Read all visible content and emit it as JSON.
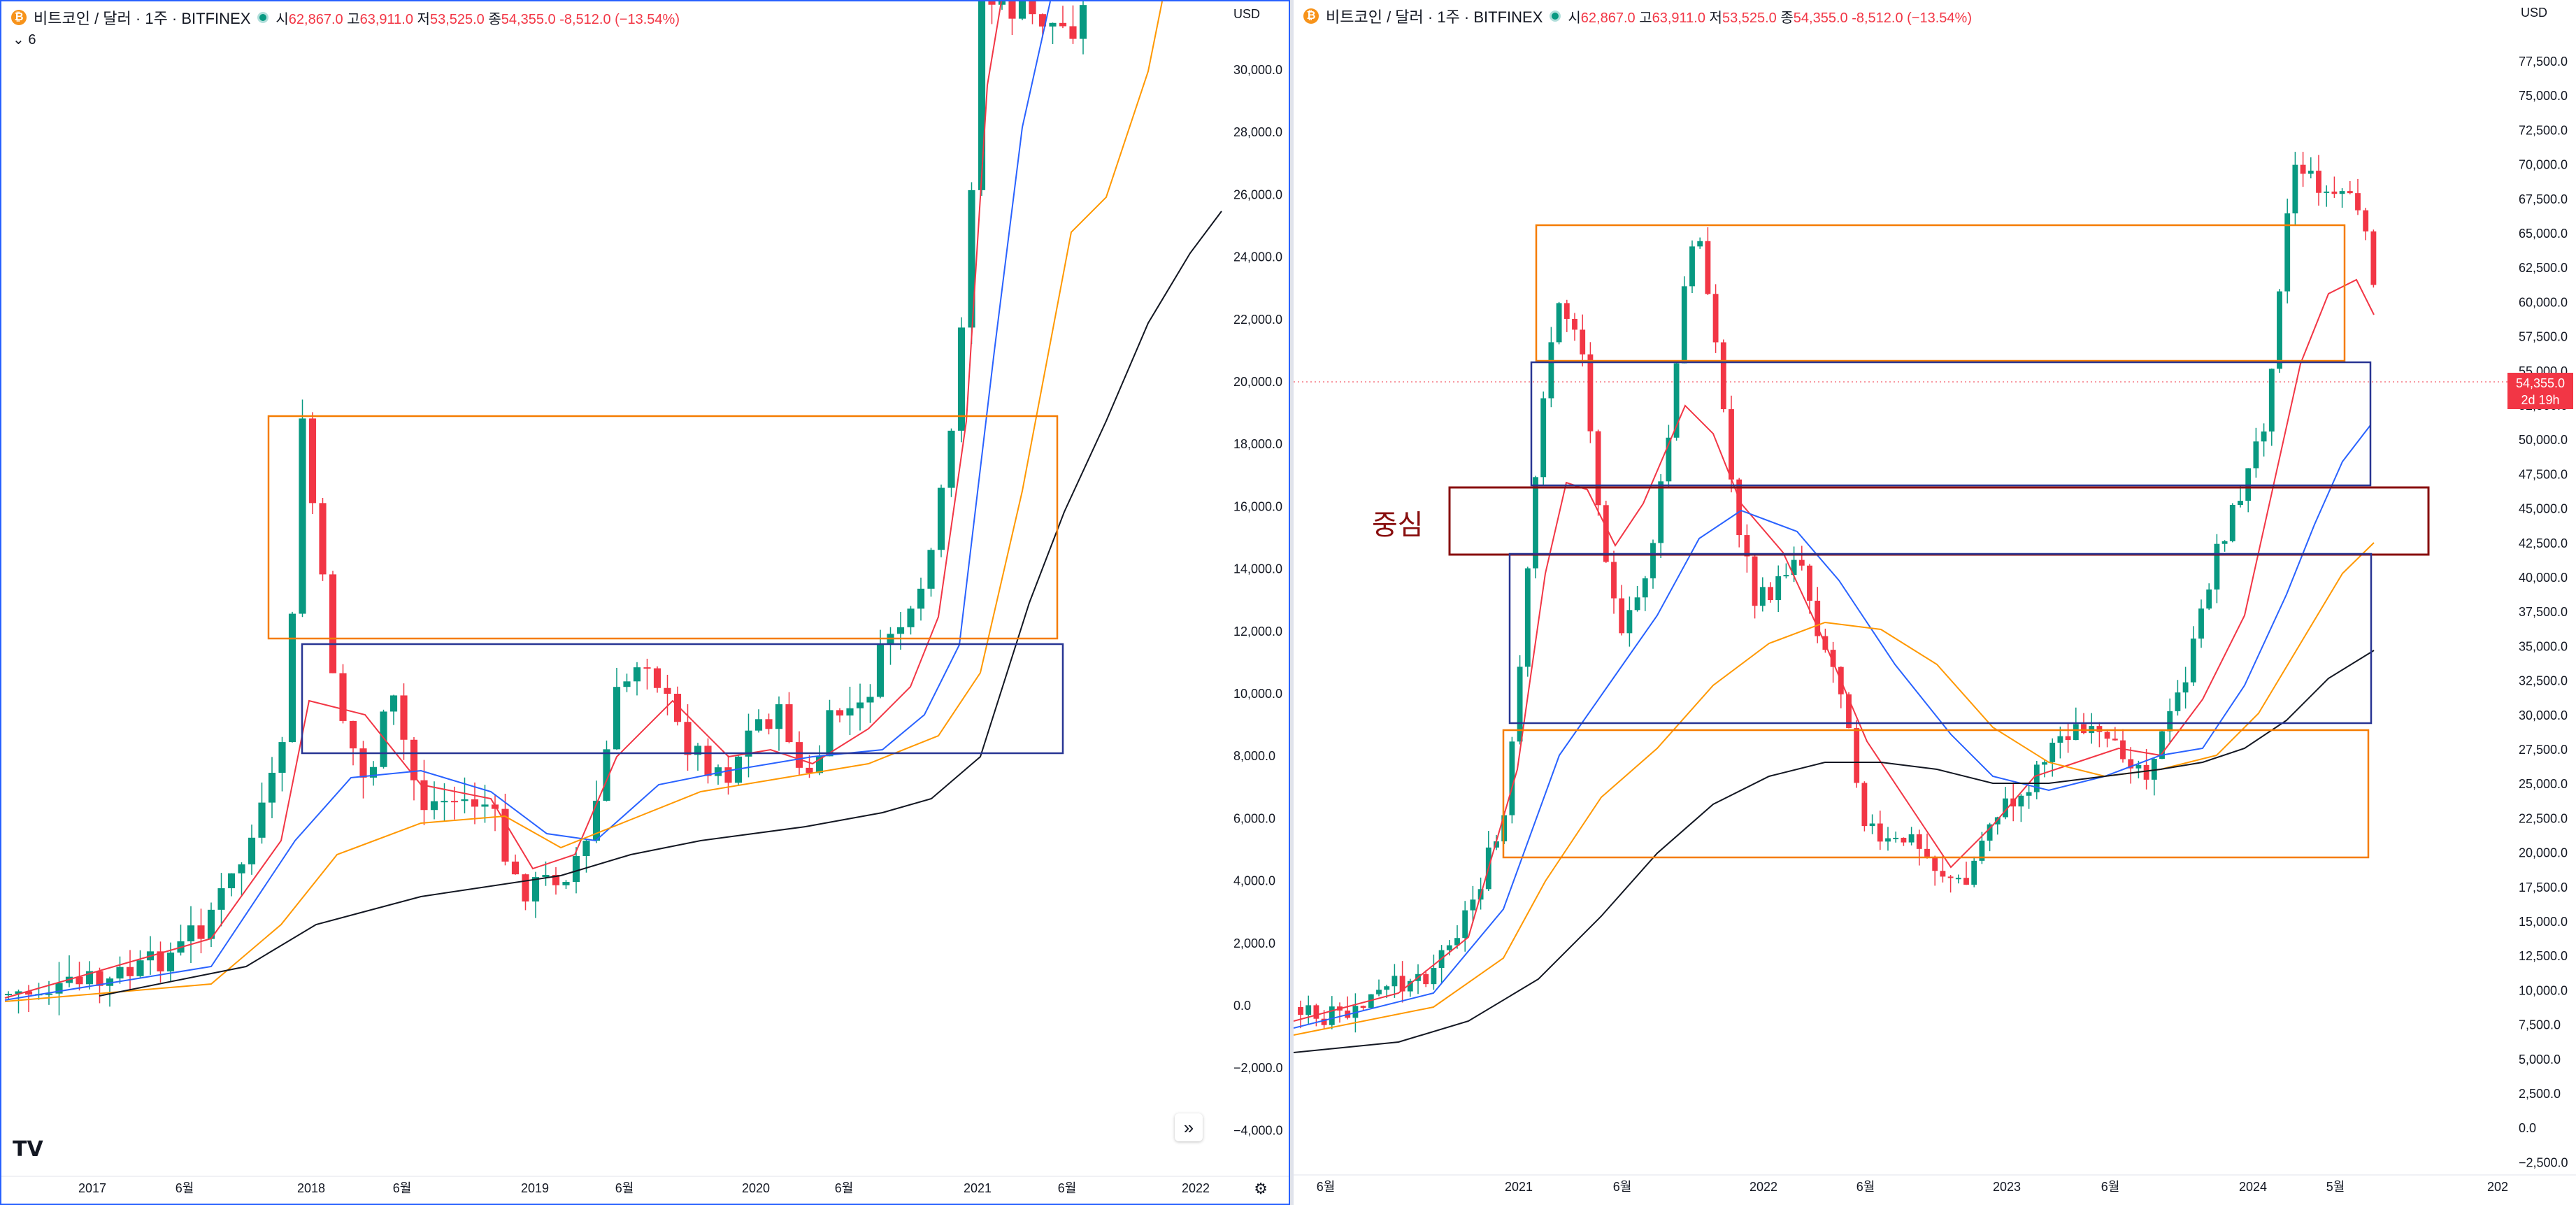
{
  "legend": {
    "symbol": "비트코인 / 달러 · 1주 · BITFINEX",
    "open_label": "시",
    "open": "62,867.0",
    "high_label": "고",
    "high": "63,911.0",
    "low_label": "저",
    "low": "53,525.0",
    "close_label": "종",
    "close": "54,355.0",
    "change": "-8,512.0 (−13.54%)",
    "indicator_count": "6"
  },
  "currency": "USD",
  "colors": {
    "up": "#089981",
    "down": "#f23645",
    "ema_red": "#f23645",
    "ema_blue": "#2962ff",
    "ema_orange": "#ff9800",
    "ema_black": "#131722",
    "box_orange": "#f57c00",
    "box_blue": "#283593",
    "box_darkred": "#880e0e"
  },
  "left_chart": {
    "y_ticks": [
      "30,000.0",
      "28,000.0",
      "26,000.0",
      "24,000.0",
      "22,000.0",
      "20,000.0",
      "18,000.0",
      "16,000.0",
      "14,000.0",
      "12,000.0",
      "10,000.0",
      "8,000.0",
      "6,000.0",
      "4,000.0",
      "2,000.0",
      "0.0",
      "−2,000.0",
      "−4,000.0"
    ],
    "x_ticks": [
      "2017",
      "6월",
      "2018",
      "6월",
      "2019",
      "6월",
      "2020",
      "6월",
      "2021",
      "6월",
      "2022"
    ]
  },
  "right_chart": {
    "y_ticks": [
      "77,500.0",
      "75,000.0",
      "72,500.0",
      "70,000.0",
      "67,500.0",
      "65,000.0",
      "62,500.0",
      "60,000.0",
      "57,500.0",
      "55,000.0",
      "52,500.0",
      "50,000.0",
      "47,500.0",
      "45,000.0",
      "42,500.0",
      "40,000.0",
      "37,500.0",
      "35,000.0",
      "32,500.0",
      "30,000.0",
      "27,500.0",
      "25,000.0",
      "22,500.0",
      "20,000.0",
      "17,500.0",
      "15,000.0",
      "12,500.0",
      "10,000.0",
      "7,500.0",
      "5,000.0",
      "2,500.0",
      "0.0",
      "−2,500.0"
    ],
    "x_ticks": [
      "6월",
      "2021",
      "6월",
      "2022",
      "6월",
      "2023",
      "6월",
      "2024",
      "5월",
      "202"
    ],
    "price_tag": "54,355.0",
    "countdown": "2d 19h",
    "annotation": "중심"
  },
  "logo": "TV",
  "scroll_icon": "»",
  "gear_icon": "⚙",
  "chevron_icon": "⌄"
}
